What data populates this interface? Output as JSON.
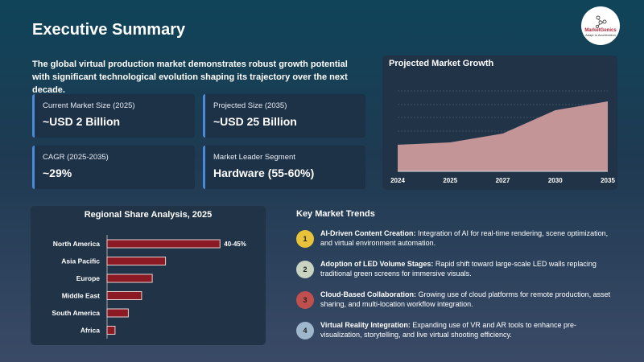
{
  "title": "Executive Summary",
  "intro": "The global virtual production market demonstrates robust growth potential with significant technological evolution shaping its trajectory over the next decade.",
  "logo": {
    "name": "MarketGenics",
    "tagline": "Adapt to Acceleration",
    "icon": "network-nodes-icon"
  },
  "cards": [
    {
      "label": "Current Market Size (2025)",
      "value": "~USD 2 Billion"
    },
    {
      "label": "Projected Size (2035)",
      "value": "~USD 25 Billion"
    },
    {
      "label": "CAGR (2025-2035)",
      "value": "~29%"
    },
    {
      "label": "Market Leader Segment",
      "value": "Hardware (55-60%)"
    }
  ],
  "accent": "#4a8ad8",
  "chart_data": [
    {
      "type": "area",
      "title": "Projected Market Growth",
      "x": [
        "2024",
        "2025",
        "2027",
        "2030",
        "2035"
      ],
      "values": [
        33,
        36,
        47,
        76,
        87
      ],
      "ylim": [
        0,
        100
      ],
      "grid": true,
      "color": "#c39597"
    },
    {
      "type": "bar",
      "orientation": "horizontal",
      "title": "Regional Share Analysis, 2025",
      "categories": [
        "North America",
        "Asia Pacific",
        "Europe",
        "Middle East",
        "South America",
        "Africa"
      ],
      "values": [
        42.5,
        22,
        17,
        13,
        8,
        3
      ],
      "data_labels": [
        "40-45%",
        "",
        "",
        "",
        "",
        ""
      ],
      "color": "#8b1a24"
    }
  ],
  "trends": {
    "heading": "Key Market Trends",
    "items": [
      {
        "num": "1",
        "title": "AI-Driven Content Creation:",
        "text": " Integration of AI for real-time rendering, scene optimization, and virtual environment automation.",
        "color": "#e8c23a"
      },
      {
        "num": "2",
        "title": "Adoption of LED Volume Stages:",
        "text": " Rapid shift toward large-scale LED walls replacing traditional green screens for immersive visuals.",
        "color": "#c9d3c2"
      },
      {
        "num": "3",
        "title": "Cloud-Based Collaboration:",
        "text": " Growing use of cloud platforms for remote production, asset sharing, and multi-location workflow integration.",
        "color": "#c0504d"
      },
      {
        "num": "4",
        "title": "Virtual Reality Integration:",
        "text": " Expanding use of VR and AR tools to enhance pre-visualization, storytelling, and live virtual shooting efficiency.",
        "color": "#9fb7cc"
      }
    ]
  }
}
